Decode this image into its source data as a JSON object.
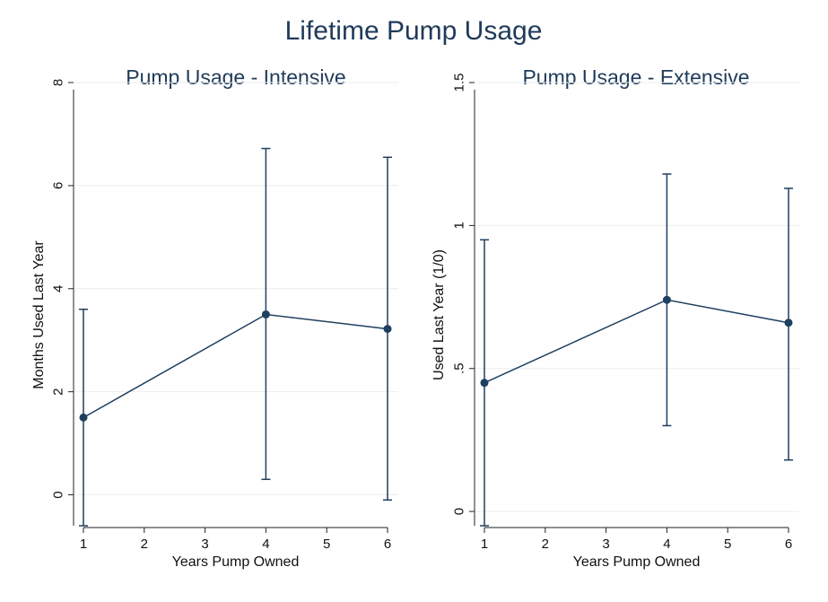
{
  "figure": {
    "title": "Lifetime Pump Usage"
  },
  "colors": {
    "series": "#1f3f5f",
    "title": "#1f3a5a",
    "grid": "#e9eef2",
    "background": "#ffffff"
  },
  "chart_data": [
    {
      "type": "line",
      "title": "Pump Usage - Intensive",
      "xlabel": "Years Pump Owned",
      "ylabel": "Months Used Last Year",
      "xlim": [
        1,
        6
      ],
      "ylim": [
        -0.6,
        8
      ],
      "xticks": [
        1,
        2,
        3,
        4,
        5,
        6
      ],
      "xtick_labels": [
        "1",
        "2",
        "3",
        "4",
        "5",
        "6"
      ],
      "yticks": [
        0,
        2,
        4,
        6,
        8
      ],
      "ytick_labels": [
        "0",
        "2",
        "4",
        "6",
        "8"
      ],
      "grid": true,
      "series": [
        {
          "x": [
            1,
            4,
            6
          ],
          "y": [
            1.5,
            3.5,
            3.22
          ],
          "ci_lower": [
            -0.6,
            0.3,
            -0.1
          ],
          "ci_upper": [
            3.6,
            6.72,
            6.55
          ]
        }
      ]
    },
    {
      "type": "line",
      "title": "Pump Usage - Extensive",
      "xlabel": "Years Pump Owned",
      "ylabel": "Used Last Year (1/0)",
      "xlim": [
        1,
        6
      ],
      "ylim": [
        -0.05,
        1.5
      ],
      "xticks": [
        1,
        2,
        3,
        4,
        5,
        6
      ],
      "xtick_labels": [
        "1",
        "2",
        "3",
        "4",
        "5",
        "6"
      ],
      "yticks": [
        0,
        0.5,
        1,
        1.5
      ],
      "ytick_labels": [
        "0",
        ".5",
        "1",
        "1.5"
      ],
      "grid": true,
      "series": [
        {
          "x": [
            1,
            4,
            6
          ],
          "y": [
            0.45,
            0.74,
            0.66
          ],
          "ci_lower": [
            -0.05,
            0.3,
            0.18
          ],
          "ci_upper": [
            0.95,
            1.18,
            1.13
          ]
        }
      ]
    }
  ]
}
